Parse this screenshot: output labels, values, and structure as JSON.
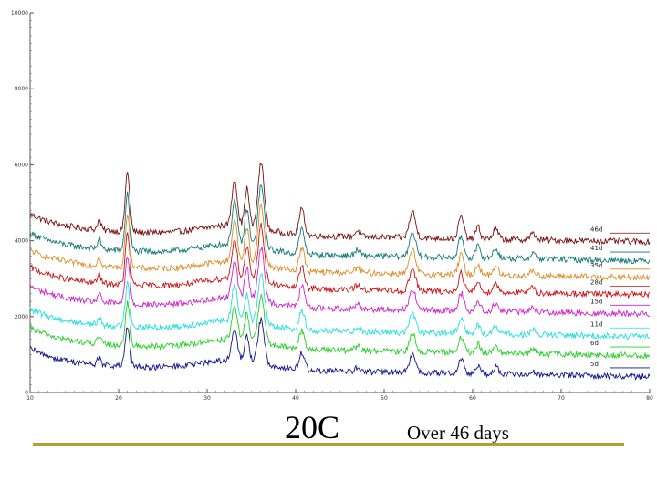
{
  "chart_data": {
    "type": "line",
    "title": "",
    "xlabel": "",
    "ylabel": "",
    "xlim": [
      10,
      80
    ],
    "ylim": [
      0,
      10000
    ],
    "x_ticks": [
      {
        "value": 10,
        "label": "10"
      },
      {
        "value": 20,
        "label": "20"
      },
      {
        "value": 30,
        "label": "30"
      },
      {
        "value": 40,
        "label": "40"
      },
      {
        "value": 50,
        "label": "50"
      },
      {
        "value": 60,
        "label": "60"
      },
      {
        "value": 70,
        "label": "70"
      },
      {
        "value": 80,
        "label": "80"
      }
    ],
    "y_ticks": [
      {
        "value": 0,
        "label": "0"
      },
      {
        "value": 2000,
        "label": "2000"
      },
      {
        "value": 4000,
        "label": "4000"
      },
      {
        "value": 6000,
        "label": "6000"
      },
      {
        "value": 8000,
        "label": "8000"
      },
      {
        "value": 10000,
        "label": "10000"
      }
    ],
    "peaks": [
      {
        "x": 21.0,
        "h": 1500,
        "w": 0.25
      },
      {
        "x": 17.8,
        "h": 250,
        "w": 0.2
      },
      {
        "x": 33.1,
        "h": 1150,
        "w": 0.3
      },
      {
        "x": 34.5,
        "h": 950,
        "w": 0.25
      },
      {
        "x": 36.1,
        "h": 1650,
        "w": 0.35
      },
      {
        "x": 40.7,
        "h": 650,
        "w": 0.3
      },
      {
        "x": 53.2,
        "h": 650,
        "w": 0.35
      },
      {
        "x": 58.7,
        "h": 550,
        "w": 0.3
      },
      {
        "x": 60.6,
        "h": 300,
        "w": 0.25
      },
      {
        "x": 62.6,
        "h": 250,
        "w": 0.3
      },
      {
        "x": 47.0,
        "h": 150,
        "w": 0.3
      },
      {
        "x": 66.8,
        "h": 150,
        "w": 0.3
      }
    ],
    "series": [
      {
        "name": "46d",
        "label": "46d",
        "color": "#7a1010",
        "baseline": 4250,
        "noise": 80,
        "offset_level": 4200
      },
      {
        "name": "41d",
        "label": "41d",
        "color": "#0f7777",
        "baseline": 3750,
        "noise": 80,
        "offset_level": 3700
      },
      {
        "name": "35d",
        "label": "35d",
        "color": "#e08a20",
        "baseline": 3300,
        "noise": 80,
        "offset_level": 3250
      },
      {
        "name": "28d",
        "label": "28d",
        "color": "#d01010",
        "baseline": 2850,
        "noise": 80,
        "offset_level": 2800
      },
      {
        "name": "15d",
        "label": "15d",
        "color": "#d020c8",
        "baseline": 2350,
        "noise": 80,
        "offset_level": 2300
      },
      {
        "name": "11d",
        "label": "11d",
        "color": "#20e0e0",
        "baseline": 1750,
        "noise": 80,
        "offset_level": 1700
      },
      {
        "name": "6d",
        "label": "6d",
        "color": "#20d020",
        "baseline": 1250,
        "noise": 80,
        "offset_level": 1200
      },
      {
        "name": "5d",
        "label": "5d",
        "color": "#101090",
        "baseline": 700,
        "noise": 80,
        "offset_level": 650
      }
    ]
  },
  "captions": {
    "temperature": "20C",
    "duration": "Over 46 days"
  }
}
